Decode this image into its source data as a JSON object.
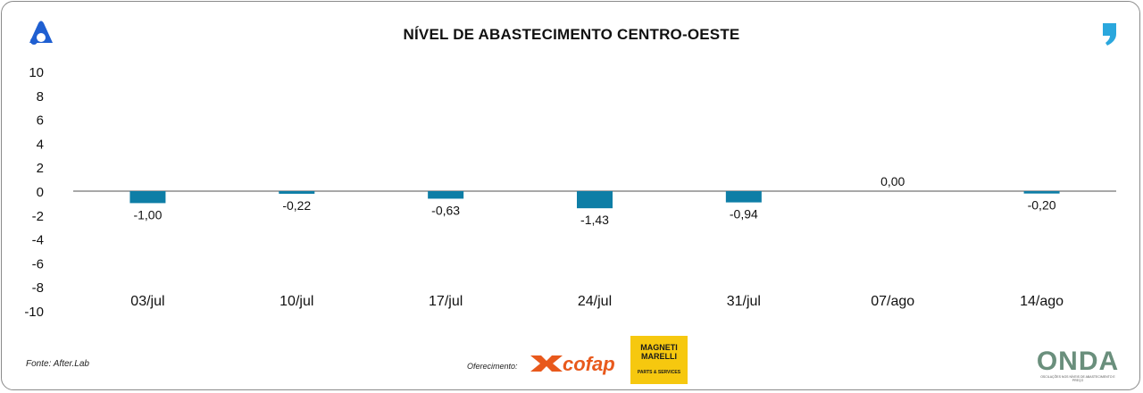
{
  "header": {
    "title": "NÍVEL DE ABASTECIMENTO CENTRO-OESTE"
  },
  "chart_data": {
    "type": "bar",
    "title": "NÍVEL DE ABASTECIMENTO CENTRO-OESTE",
    "categories": [
      "03/jul",
      "10/jul",
      "17/jul",
      "24/jul",
      "31/jul",
      "07/ago",
      "14/ago"
    ],
    "values": [
      -1.0,
      -0.22,
      -0.63,
      -1.43,
      -0.94,
      0.0,
      -0.2
    ],
    "labels": [
      "-1,00",
      "-0,22",
      "-0,63",
      "-1,43",
      "-0,94",
      "0,00",
      "-0,20"
    ],
    "yticks": [
      "10",
      "8",
      "6",
      "4",
      "2",
      "0",
      "-2",
      "-4",
      "-6",
      "-8",
      "-10"
    ],
    "ylim": [
      -10,
      10
    ],
    "xlabel": "",
    "ylabel": "",
    "bar_color": "#0e7ea6",
    "axis_color": "#8c8c8c",
    "grid": false
  },
  "footer": {
    "source": "Fonte: After.Lab",
    "sponsor_label": "Oferecimento:",
    "cofap": "cofap",
    "magneti_title": "MAGNETI MARELLI",
    "magneti_sub": "PARTS & SERVICES",
    "onda": "ONDA",
    "onda_sub": "OSCILAÇÕES NOS NÍVEIS DE ABASTECIMENTO E PREÇO"
  }
}
